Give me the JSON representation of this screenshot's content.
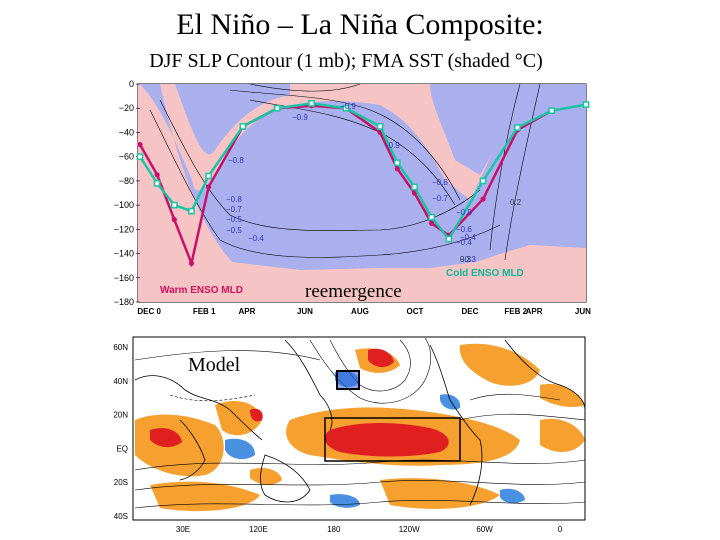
{
  "title": "El Niño – La Niña Composite:",
  "subtitle": "DJF SLP Contour (1 mb); FMA SST (shaded °C)",
  "colors": {
    "warm_line": "#c8106a",
    "cold_line": "#19c4a4",
    "neg_fill": "#aab0ee",
    "pos_fill": "#f6c4c4",
    "label_warm": "#d0105e",
    "label_cold": "#10b89a",
    "contour_label": "#3038c0",
    "map_warm": "#e02020",
    "map_orange": "#f6a030",
    "map_cool": "#4a90e0"
  },
  "chart_data": [
    {
      "type": "line",
      "x_ticks": [
        "DEC 0",
        "FEB 1",
        "APR",
        "JUN",
        "AUG",
        "OCT",
        "DEC",
        "FEB 2",
        "APR",
        "JUN"
      ],
      "y_ticks": [
        "0",
        "−20",
        "−40",
        "−60",
        "−80",
        "−100",
        "−120",
        "−140",
        "−160",
        "−180"
      ],
      "ylim": [
        -180,
        0
      ],
      "series": [
        {
          "name": "Warm ENSO MLD",
          "x": [
            0,
            0.5,
            1,
            1.5,
            2,
            3,
            4,
            5,
            6,
            7,
            7.5,
            8,
            8.5,
            9,
            10,
            11,
            12
          ],
          "values": [
            -50,
            -75,
            -112,
            -148,
            -85,
            -35,
            -20,
            -18,
            -20,
            -40,
            -70,
            -90,
            -115,
            -125,
            -95,
            -38,
            -22
          ]
        },
        {
          "name": "Cold ENSO MLD",
          "x": [
            0,
            0.5,
            1,
            1.5,
            2,
            3,
            4,
            5,
            6,
            7,
            7.5,
            8,
            8.5,
            9,
            10,
            11,
            12,
            13
          ],
          "values": [
            -60,
            -82,
            -100,
            -105,
            -76,
            -35,
            -20,
            -16,
            -20,
            -35,
            -65,
            -85,
            -110,
            -128,
            -80,
            -36,
            -22,
            -17
          ]
        }
      ],
      "contour_labels": [
        "−0.4",
        "−0.8",
        "−0.9",
        "−0.8",
        "−0.7",
        "−0.8",
        "−0.5",
        "−0.4",
        "−0.3",
        "−0.9",
        "−0.9",
        "−0.8",
        "−0.7",
        "−0.6",
        "−0.5",
        "−0.4",
        "0.2",
        "0.3"
      ],
      "annotations": [
        "reemergence"
      ]
    },
    {
      "type": "heatmap",
      "x_ticks": [
        "30E",
        "120E",
        "180",
        "120W",
        "60W",
        "0"
      ],
      "y_ticks": [
        "60N",
        "40N",
        "20N",
        "EQ",
        "20S",
        "40S"
      ],
      "annotations": [
        "Model"
      ]
    }
  ]
}
